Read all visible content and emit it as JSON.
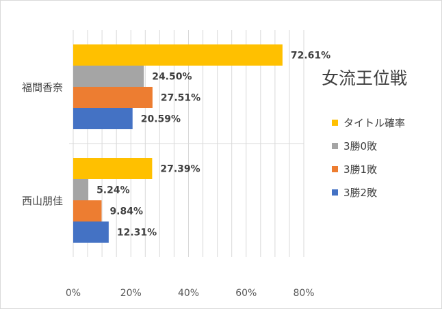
{
  "chart_data": {
    "type": "bar",
    "orientation": "horizontal",
    "title": "女流王位戦",
    "categories": [
      "福間香奈",
      "西山朋佳"
    ],
    "series": [
      {
        "name": "タイトル確率",
        "color": "#FFC000",
        "values": [
          72.61,
          27.39
        ],
        "labels": [
          "72.61%",
          "27.39%"
        ]
      },
      {
        "name": "3勝0敗",
        "color": "#A5A5A5",
        "values": [
          24.5,
          5.24
        ],
        "labels": [
          "24.50%",
          "5.24%"
        ]
      },
      {
        "name": "3勝1敗",
        "color": "#ED7D31",
        "values": [
          27.51,
          9.84
        ],
        "labels": [
          "27.51%",
          "9.84%"
        ]
      },
      {
        "name": "3勝2敗",
        "color": "#4472C4",
        "values": [
          20.59,
          12.31
        ],
        "labels": [
          "20.59%",
          "12.31%"
        ]
      }
    ],
    "xlim": [
      0,
      80
    ],
    "xticks": [
      "0%",
      "20%",
      "40%",
      "60%",
      "80%"
    ],
    "grid": true,
    "legend_position": "right"
  }
}
